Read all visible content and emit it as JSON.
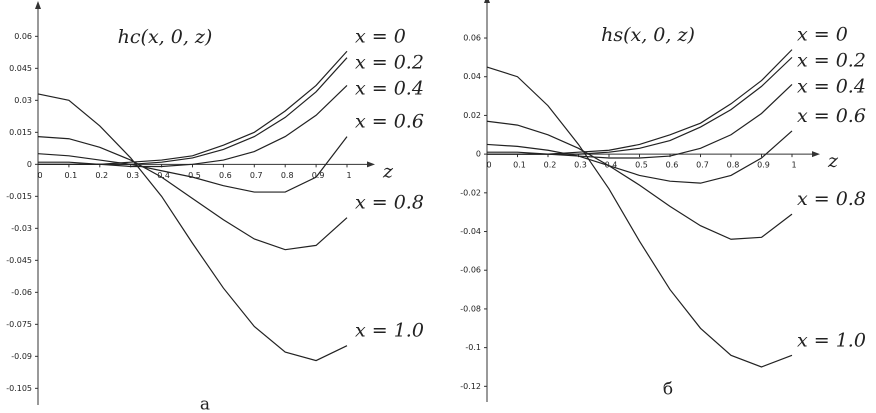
{
  "chart_data": [
    {
      "type": "line",
      "title": "hc(x, 0, z)",
      "xlabel": "z",
      "caption": "а",
      "x": [
        0,
        0.1,
        0.2,
        0.3,
        0.4,
        0.5,
        0.6,
        0.7,
        0.8,
        0.9,
        1
      ],
      "xlim": [
        0,
        1
      ],
      "xticks": [
        0,
        0.1,
        0.2,
        0.3,
        0.4,
        0.5,
        0.6,
        0.7,
        0.8,
        0.9,
        1
      ],
      "ylim": [
        -0.11,
        0.07
      ],
      "yticks": [
        0.06,
        0.045,
        0.03,
        0.015,
        0,
        -0.015,
        -0.03,
        -0.045,
        -0.06,
        -0.075,
        -0.09,
        -0.105
      ],
      "series": [
        {
          "name": "x = 0",
          "color": "#222222",
          "values": [
            0,
            0,
            0,
            0.001,
            0.002,
            0.004,
            0.009,
            0.015,
            0.025,
            0.037,
            0.053
          ]
        },
        {
          "name": "x = 0.2",
          "color": "#222222",
          "values": [
            0,
            0,
            0,
            0,
            0.001,
            0.003,
            0.007,
            0.013,
            0.022,
            0.034,
            0.05
          ]
        },
        {
          "name": "x = 0.4",
          "color": "#222222",
          "values": [
            0.001,
            0.001,
            0,
            -0.001,
            -0.001,
            0,
            0.002,
            0.006,
            0.013,
            0.023,
            0.037
          ]
        },
        {
          "name": "x = 0.6",
          "color": "#222222",
          "values": [
            0.005,
            0.004,
            0.002,
            0,
            -0.003,
            -0.006,
            -0.01,
            -0.013,
            -0.013,
            -0.006,
            0.013
          ]
        },
        {
          "name": "x = 0.8",
          "color": "#222222",
          "values": [
            0.013,
            0.012,
            0.008,
            0.002,
            -0.006,
            -0.016,
            -0.026,
            -0.035,
            -0.04,
            -0.038,
            -0.025
          ]
        },
        {
          "name": "x = 1.0",
          "color": "#222222",
          "values": [
            0.033,
            0.03,
            0.018,
            0.003,
            -0.015,
            -0.037,
            -0.058,
            -0.076,
            -0.088,
            -0.092,
            -0.085
          ]
        }
      ]
    },
    {
      "type": "line",
      "title": "hs(x, 0, z)",
      "xlabel": "z",
      "caption": "б",
      "x": [
        0,
        0.1,
        0.2,
        0.3,
        0.4,
        0.5,
        0.6,
        0.7,
        0.8,
        0.9,
        1
      ],
      "xlim": [
        0,
        1
      ],
      "xticks": [
        0,
        0.1,
        0.2,
        0.3,
        0.4,
        0.5,
        0.6,
        0.7,
        0.8,
        0.9,
        1
      ],
      "ylim": [
        -0.125,
        0.075
      ],
      "yticks": [
        0.06,
        0.04,
        0.02,
        0,
        -0.02,
        -0.04,
        -0.06,
        -0.08,
        -0.1,
        -0.12
      ],
      "series": [
        {
          "name": "x = 0",
          "color": "#222222",
          "values": [
            0,
            0,
            0,
            0.001,
            0.002,
            0.005,
            0.01,
            0.016,
            0.026,
            0.038,
            0.054
          ]
        },
        {
          "name": "x = 0.2",
          "color": "#222222",
          "values": [
            0,
            0,
            0,
            0,
            0.001,
            0.003,
            0.007,
            0.014,
            0.023,
            0.035,
            0.05
          ]
        },
        {
          "name": "x = 0.4",
          "color": "#222222",
          "values": [
            0.001,
            0.001,
            0,
            -0.001,
            -0.002,
            -0.002,
            -0.001,
            0.003,
            0.01,
            0.021,
            0.036
          ]
        },
        {
          "name": "x = 0.6",
          "color": "#222222",
          "values": [
            0.005,
            0.004,
            0.002,
            -0.001,
            -0.006,
            -0.011,
            -0.014,
            -0.015,
            -0.011,
            -0.002,
            0.012
          ]
        },
        {
          "name": "x = 0.8",
          "color": "#222222",
          "values": [
            0.017,
            0.015,
            0.01,
            0.003,
            -0.006,
            -0.016,
            -0.027,
            -0.037,
            -0.044,
            -0.043,
            -0.031
          ]
        },
        {
          "name": "x = 1.0",
          "color": "#222222",
          "values": [
            0.045,
            0.04,
            0.025,
            0.005,
            -0.018,
            -0.045,
            -0.07,
            -0.09,
            -0.104,
            -0.11,
            -0.104
          ]
        }
      ]
    }
  ]
}
